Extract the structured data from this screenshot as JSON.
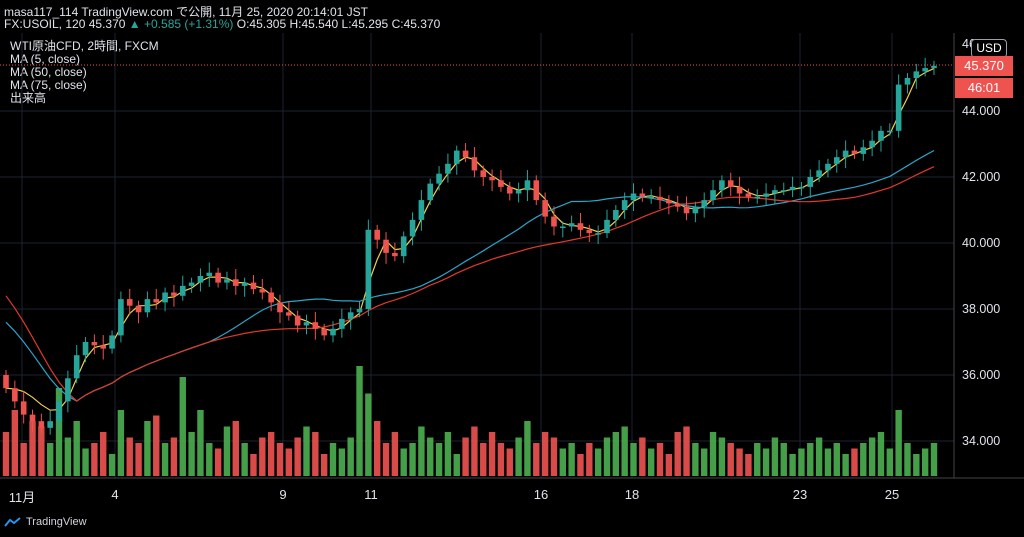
{
  "header": {
    "author_line": "masa117_114 TradingView.com で公開, 11月 25, 2020 20:14:01 JST",
    "symbol": "FX:USOIL, 120",
    "last": "45.370",
    "change": "+0.585 (+1.31%)",
    "change_arrow": "▲",
    "o": "O:45.305",
    "h": "H:45.540",
    "l": "L:45.295",
    "c": "C:45.370"
  },
  "indicators": [
    "WTI原油CFD, 2時間, FXCM",
    "MA (5, close)",
    "MA (50, close)",
    "MA (75, close)",
    "出来高"
  ],
  "axis": {
    "currency": "USD",
    "price_tag": "45.370",
    "countdown": "46:01",
    "top_partial": "46.000",
    "y_ticks": [
      "44.000",
      "42.000",
      "40.000",
      "38.000",
      "36.000",
      "34.000"
    ],
    "x_ticks": [
      "11月",
      "4",
      "9",
      "11",
      "16",
      "18",
      "23",
      "25"
    ]
  },
  "brand": "TradingView",
  "colors": {
    "up": "#26a69a",
    "down": "#ef5350",
    "ma5": "#f0d04a",
    "ma50": "#29a6c9",
    "ma75": "#e0392b",
    "vol_up": "#4caf50",
    "vol_down": "#ef5350"
  },
  "chart_data": {
    "type": "candlestick",
    "ylim": [
      33,
      46.5
    ],
    "closes": [
      35.6,
      35.2,
      34.8,
      34.6,
      34.4,
      34.6,
      35.2,
      35.9,
      36.6,
      37.0,
      36.9,
      36.8,
      37.2,
      38.3,
      38.1,
      37.9,
      38.3,
      38.2,
      38.5,
      38.4,
      38.7,
      38.8,
      39.0,
      39.1,
      38.8,
      38.9,
      38.7,
      38.8,
      38.6,
      38.5,
      38.2,
      37.9,
      37.8,
      37.5,
      37.6,
      37.4,
      37.2,
      37.4,
      37.7,
      37.9,
      38.0,
      40.4,
      40.1,
      39.7,
      39.6,
      40.2,
      40.7,
      41.3,
      41.8,
      42.1,
      42.4,
      42.8,
      42.6,
      42.2,
      42.0,
      41.9,
      41.7,
      41.5,
      41.6,
      41.9,
      41.3,
      40.8,
      40.5,
      40.5,
      40.6,
      40.4,
      40.3,
      40.3,
      40.7,
      41.0,
      41.3,
      41.5,
      41.4,
      41.4,
      41.3,
      41.2,
      41.1,
      40.9,
      41.1,
      41.3,
      41.6,
      41.9,
      41.7,
      41.5,
      41.4,
      41.4,
      41.5,
      41.6,
      41.6,
      41.7,
      41.7,
      42.0,
      42.2,
      42.4,
      42.6,
      42.8,
      42.7,
      42.9,
      43.1,
      43.4,
      43.4,
      44.8,
      45.0,
      45.2,
      45.3,
      45.37
    ],
    "volumes": [
      0.4,
      0.6,
      0.3,
      0.5,
      0.45,
      0.3,
      0.8,
      0.35,
      0.5,
      0.25,
      0.3,
      0.4,
      0.2,
      0.6,
      0.35,
      0.3,
      0.5,
      0.55,
      0.3,
      0.35,
      0.9,
      0.4,
      0.6,
      0.3,
      0.25,
      0.45,
      0.5,
      0.3,
      0.2,
      0.35,
      0.4,
      0.3,
      0.25,
      0.35,
      0.45,
      0.4,
      0.2,
      0.3,
      0.25,
      0.35,
      1.0,
      0.75,
      0.5,
      0.3,
      0.4,
      0.25,
      0.3,
      0.45,
      0.35,
      0.3,
      0.4,
      0.2,
      0.35,
      0.45,
      0.3,
      0.4,
      0.3,
      0.25,
      0.35,
      0.5,
      0.3,
      0.4,
      0.35,
      0.25,
      0.3,
      0.2,
      0.3,
      0.25,
      0.35,
      0.4,
      0.45,
      0.3,
      0.35,
      0.25,
      0.3,
      0.2,
      0.4,
      0.45,
      0.3,
      0.25,
      0.4,
      0.35,
      0.3,
      0.25,
      0.2,
      0.3,
      0.25,
      0.35,
      0.3,
      0.2,
      0.25,
      0.3,
      0.35,
      0.25,
      0.3,
      0.2,
      0.25,
      0.3,
      0.35,
      0.4,
      0.25,
      0.6,
      0.3,
      0.2,
      0.25,
      0.3
    ]
  }
}
